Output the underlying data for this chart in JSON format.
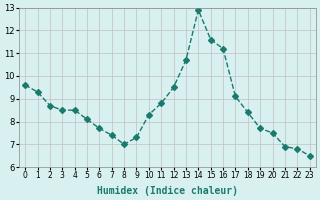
{
  "x": [
    0,
    1,
    2,
    3,
    4,
    5,
    6,
    7,
    8,
    9,
    10,
    11,
    12,
    13,
    14,
    15,
    16,
    17,
    18,
    19,
    20,
    21,
    22,
    23
  ],
  "y": [
    9.6,
    9.3,
    8.7,
    8.5,
    8.5,
    8.1,
    7.7,
    7.4,
    7.0,
    7.3,
    8.3,
    8.8,
    9.5,
    10.7,
    12.9,
    11.6,
    11.2,
    9.1,
    8.4,
    7.7,
    7.5,
    6.9,
    6.8,
    6.5
  ],
  "line_color": "#1a7a6e",
  "marker": "D",
  "marker_size": 3,
  "bg_color": "#d8f0f0",
  "grid_color": "#c0c0c0",
  "xlabel": "Humidex (Indice chaleur)",
  "xlim": [
    -0.5,
    23.5
  ],
  "ylim": [
    6,
    13
  ],
  "yticks": [
    6,
    7,
    8,
    9,
    10,
    11,
    12,
    13
  ],
  "xticks": [
    0,
    1,
    2,
    3,
    4,
    5,
    6,
    7,
    8,
    9,
    10,
    11,
    12,
    13,
    14,
    15,
    16,
    17,
    18,
    19,
    20,
    21,
    22,
    23
  ]
}
